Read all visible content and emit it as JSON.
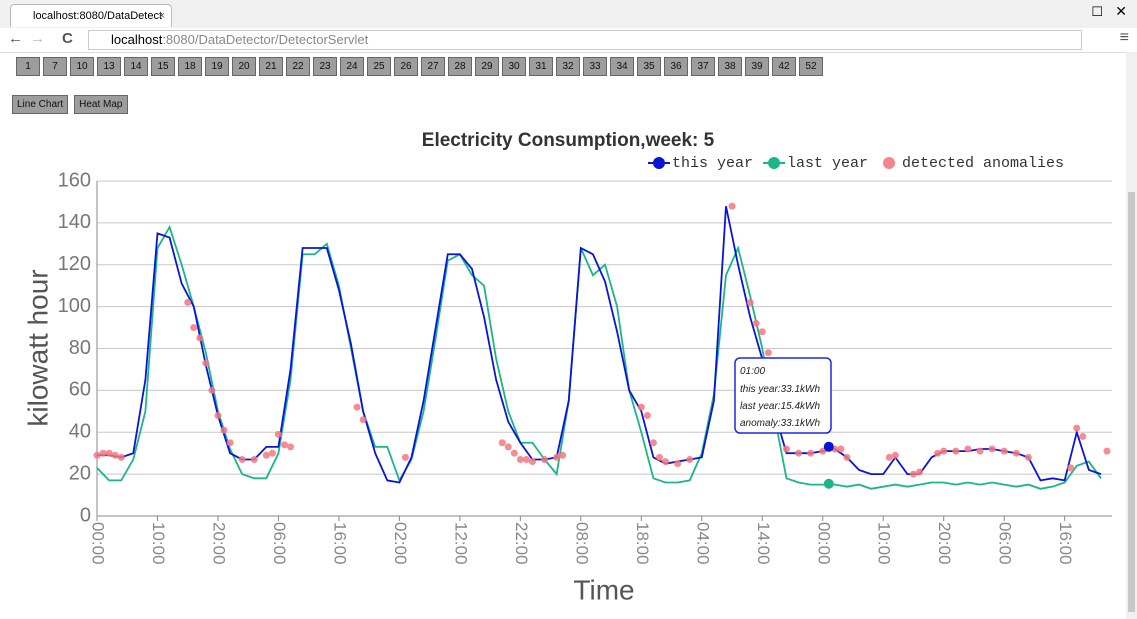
{
  "browser": {
    "tab_title": "localhost:8080/DataDetect",
    "url_host": "localhost",
    "url_rest": ":8080/DataDetector/DetectorServlet"
  },
  "week_buttons": [
    "1",
    "7",
    "10",
    "13",
    "14",
    "15",
    "18",
    "19",
    "20",
    "21",
    "22",
    "23",
    "24",
    "25",
    "26",
    "27",
    "28",
    "29",
    "30",
    "31",
    "32",
    "33",
    "34",
    "35",
    "36",
    "37",
    "38",
    "39",
    "42",
    "52"
  ],
  "view_buttons": [
    "Line Chart",
    "Heat Map"
  ],
  "chart_data": {
    "type": "line",
    "title": "Electricity Consumption,week: 5",
    "y_label": "kilowatt hour",
    "x_label": "Time",
    "grid": true,
    "legend": "top-right",
    "ylim": [
      0,
      160
    ],
    "yticks": [
      0,
      20,
      40,
      60,
      80,
      100,
      120,
      140,
      160
    ],
    "xlim": [
      0,
      167
    ],
    "xticks": [
      {
        "value": 0,
        "label": "00:00"
      },
      {
        "value": 10,
        "label": "10:00"
      },
      {
        "value": 20,
        "label": "20:00"
      },
      {
        "value": 30,
        "label": "06:00"
      },
      {
        "value": 40,
        "label": "16:00"
      },
      {
        "value": 50,
        "label": "02:00"
      },
      {
        "value": 60,
        "label": "12:00"
      },
      {
        "value": 70,
        "label": "22:00"
      },
      {
        "value": 80,
        "label": "08:00"
      },
      {
        "value": 90,
        "label": "18:00"
      },
      {
        "value": 100,
        "label": "04:00"
      },
      {
        "value": 110,
        "label": "14:00"
      },
      {
        "value": 120,
        "label": "00:00"
      },
      {
        "value": 130,
        "label": "10:00"
      },
      {
        "value": 140,
        "label": "20:00"
      },
      {
        "value": 150,
        "label": "06:00"
      },
      {
        "value": 160,
        "label": "16:00"
      }
    ],
    "x": [
      0,
      2,
      4,
      6,
      8,
      10,
      12,
      14,
      16,
      18,
      20,
      22,
      24,
      26,
      28,
      30,
      32,
      34,
      36,
      38,
      40,
      42,
      44,
      46,
      48,
      50,
      52,
      54,
      56,
      58,
      60,
      62,
      64,
      66,
      68,
      70,
      72,
      74,
      76,
      78,
      80,
      82,
      84,
      86,
      88,
      90,
      92,
      94,
      96,
      98,
      100,
      102,
      104,
      106,
      108,
      110,
      112,
      114,
      116,
      118,
      120,
      122,
      124,
      126,
      128,
      130,
      132,
      134,
      136,
      138,
      140,
      142,
      144,
      146,
      148,
      150,
      152,
      154,
      156,
      158,
      160,
      162,
      164,
      166
    ],
    "series": [
      {
        "name": "this year",
        "color": "#0a14d8",
        "values": [
          29,
          29,
          28,
          30,
          65,
          135,
          133,
          111,
          100,
          72,
          48,
          30,
          27,
          27,
          33,
          33,
          70,
          128,
          128,
          128,
          108,
          82,
          50,
          30,
          17,
          16,
          28,
          55,
          90,
          125,
          125,
          118,
          95,
          65,
          45,
          35,
          27,
          27,
          28,
          55,
          128,
          125,
          112,
          88,
          60,
          50,
          28,
          25,
          26,
          27,
          28,
          55,
          148,
          120,
          95,
          75,
          50,
          30,
          30,
          30,
          31,
          32,
          28,
          22,
          20,
          20,
          28,
          20,
          20,
          28,
          31,
          31,
          31,
          32,
          32,
          31,
          30,
          28,
          17,
          18,
          17,
          40,
          22,
          20
        ]
      },
      {
        "name": "last year",
        "color": "#1ab68a",
        "values": [
          23,
          17,
          17,
          27,
          50,
          128,
          138,
          120,
          100,
          78,
          50,
          32,
          20,
          18,
          18,
          30,
          65,
          125,
          125,
          130,
          110,
          80,
          50,
          33,
          33,
          17,
          27,
          50,
          85,
          122,
          125,
          115,
          110,
          75,
          50,
          35,
          35,
          27,
          20,
          55,
          128,
          115,
          120,
          100,
          60,
          40,
          18,
          16,
          16,
          17,
          30,
          58,
          115,
          128,
          105,
          80,
          48,
          18,
          16,
          15,
          15,
          15,
          14,
          15,
          13,
          14,
          15,
          14,
          15,
          16,
          16,
          15,
          16,
          15,
          16,
          15,
          14,
          15,
          13,
          14,
          16,
          24,
          26,
          18
        ]
      },
      {
        "name": "detected anomalies",
        "color": "#f4777f",
        "type": "scatter",
        "x": [
          0,
          1,
          2,
          3,
          4,
          15,
          16,
          17,
          18,
          19,
          20,
          21,
          22,
          24,
          26,
          28,
          29,
          30,
          31,
          32,
          43,
          44,
          51,
          67,
          68,
          69,
          70,
          71,
          72,
          74,
          76,
          77,
          90,
          91,
          92,
          93,
          94,
          96,
          98,
          105,
          108,
          109,
          110,
          111,
          114,
          116,
          118,
          120,
          122,
          123,
          124,
          131,
          132,
          135,
          136,
          139,
          140,
          142,
          144,
          146,
          148,
          150,
          152,
          154,
          161,
          162,
          163,
          167
        ],
        "values": [
          29,
          30,
          30,
          29,
          28,
          102,
          90,
          85,
          73,
          60,
          48,
          41,
          35,
          27,
          27,
          29,
          30,
          39,
          34,
          33,
          52,
          46,
          28,
          35,
          33,
          30,
          27,
          27,
          26,
          27,
          28,
          29,
          52,
          48,
          35,
          28,
          26,
          25,
          27,
          148,
          102,
          92,
          88,
          78,
          32,
          30,
          30,
          31,
          32,
          32,
          28,
          28,
          29,
          20,
          21,
          30,
          31,
          31,
          32,
          31,
          32,
          31,
          30,
          28,
          23,
          42,
          38,
          31
        ]
      }
    ],
    "hover": {
      "x": 121,
      "this_year": 33.1,
      "last_year": 15.4,
      "time": "01:00",
      "lines": [
        "this year:33.1kWh",
        "last year:15.4kWh",
        "anomaly:33.1kWh"
      ]
    }
  }
}
